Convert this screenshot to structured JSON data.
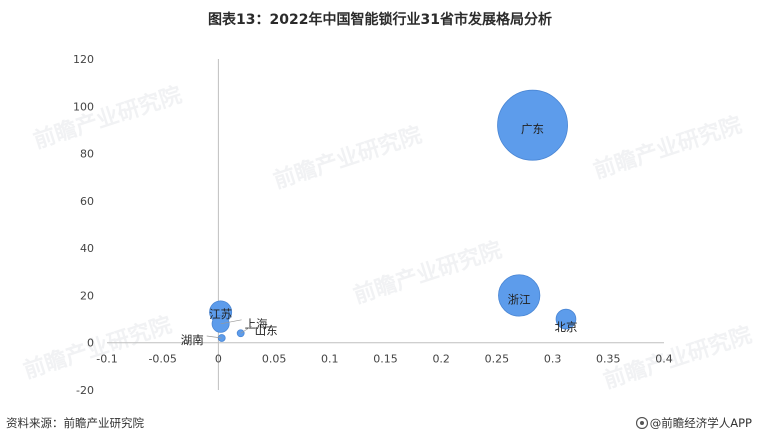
{
  "title": "图表13：2022年中国智能锁行业31省市发展格局分析",
  "footer": {
    "source": "资料来源：前瞻产业研究院",
    "brand": "@前瞻经济学人APP"
  },
  "watermark_text": "前瞻产业研究院",
  "colors": {
    "bubble": "#5d9ceb",
    "bubble_edge": "#4a86d4",
    "axis": "#bfbfbf",
    "text": "#333333"
  },
  "chart_data": {
    "type": "scatter",
    "title": "图表13：2022年中国智能锁行业31省市发展格局分析",
    "xlabel": "",
    "ylabel": "",
    "xlim": [
      -0.1,
      0.4
    ],
    "ylim": [
      -20,
      120
    ],
    "xticks": [
      "-0.1",
      "-0.05",
      "0",
      "0.05",
      "0.1",
      "0.15",
      "0.2",
      "0.25",
      "0.3",
      "0.35",
      "0.4"
    ],
    "yticks": [
      "-20",
      "0",
      "20",
      "40",
      "60",
      "80",
      "100",
      "120"
    ],
    "grid": false,
    "legend": "none",
    "points": [
      {
        "label": "广东",
        "x": 0.282,
        "y": 92,
        "size": 100
      },
      {
        "label": "浙江",
        "x": 0.27,
        "y": 20,
        "size": 35
      },
      {
        "label": "北京",
        "x": 0.312,
        "y": 10,
        "size": 8
      },
      {
        "label": "江苏",
        "x": 0.002,
        "y": 13,
        "size": 10
      },
      {
        "label": "上海",
        "x": 0.002,
        "y": 8,
        "size": 6
      },
      {
        "label": "山东",
        "x": 0.02,
        "y": 4,
        "size": 1
      },
      {
        "label": "湖南",
        "x": 0.003,
        "y": 2,
        "size": 1
      }
    ]
  }
}
